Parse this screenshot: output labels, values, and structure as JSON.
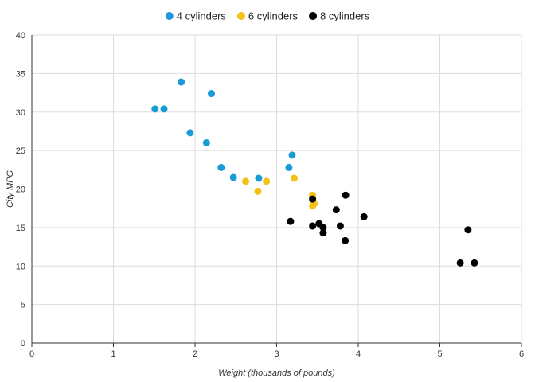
{
  "chart_data": {
    "type": "scatter",
    "xlabel": "Weight (thousands of pounds)",
    "ylabel": "City MPG",
    "xlim": [
      0,
      6
    ],
    "ylim": [
      0,
      40
    ],
    "xticks": [
      0,
      1,
      2,
      3,
      4,
      5,
      6
    ],
    "yticks": [
      0,
      5,
      10,
      15,
      20,
      25,
      30,
      35,
      40
    ],
    "grid": true,
    "legend_position": "top",
    "series": [
      {
        "name": "4 cylinders",
        "color": "#1a9ad6",
        "points": [
          {
            "x": 1.51,
            "y": 30.4
          },
          {
            "x": 1.62,
            "y": 30.4
          },
          {
            "x": 1.83,
            "y": 33.9
          },
          {
            "x": 1.94,
            "y": 27.3
          },
          {
            "x": 2.14,
            "y": 26.0
          },
          {
            "x": 2.2,
            "y": 32.4
          },
          {
            "x": 2.32,
            "y": 22.8
          },
          {
            "x": 2.47,
            "y": 21.5
          },
          {
            "x": 2.78,
            "y": 21.4
          },
          {
            "x": 3.15,
            "y": 22.8
          },
          {
            "x": 3.19,
            "y": 24.4
          }
        ]
      },
      {
        "name": "6 cylinders",
        "color": "#f5c116",
        "points": [
          {
            "x": 2.62,
            "y": 21.0
          },
          {
            "x": 2.77,
            "y": 19.7
          },
          {
            "x": 2.875,
            "y": 21.0
          },
          {
            "x": 3.215,
            "y": 21.4
          },
          {
            "x": 3.44,
            "y": 19.2
          },
          {
            "x": 3.44,
            "y": 17.8
          },
          {
            "x": 3.46,
            "y": 18.1
          }
        ]
      },
      {
        "name": "8 cylinders",
        "color": "#000000",
        "points": [
          {
            "x": 3.17,
            "y": 15.8
          },
          {
            "x": 3.44,
            "y": 18.7
          },
          {
            "x": 3.44,
            "y": 15.2
          },
          {
            "x": 3.52,
            "y": 15.5
          },
          {
            "x": 3.57,
            "y": 14.3
          },
          {
            "x": 3.57,
            "y": 15.0
          },
          {
            "x": 3.73,
            "y": 17.3
          },
          {
            "x": 3.78,
            "y": 15.2
          },
          {
            "x": 3.84,
            "y": 13.3
          },
          {
            "x": 3.845,
            "y": 19.2
          },
          {
            "x": 4.07,
            "y": 16.4
          },
          {
            "x": 5.25,
            "y": 10.4
          },
          {
            "x": 5.345,
            "y": 14.7
          },
          {
            "x": 5.424,
            "y": 10.4
          }
        ]
      }
    ]
  }
}
